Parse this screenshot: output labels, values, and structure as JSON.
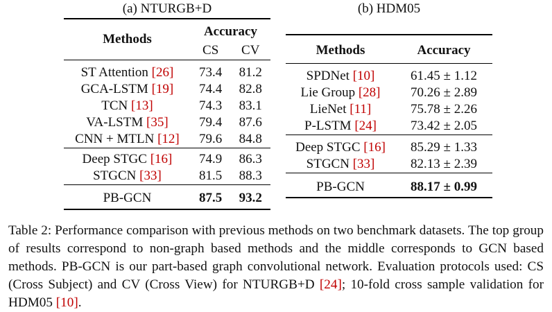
{
  "table_a": {
    "caption": "(a) NTURGB+D",
    "header": {
      "methods": "Methods",
      "accuracy": "Accuracy",
      "cs": "CS",
      "cv": "CV"
    },
    "group1": [
      {
        "method": "ST Attention ",
        "ref": "[26]",
        "cs": "73.4",
        "cv": "81.2"
      },
      {
        "method": "GCA-LSTM ",
        "ref": "[19]",
        "cs": "74.4",
        "cv": "82.8"
      },
      {
        "method": "TCN ",
        "ref": "[13]",
        "cs": "74.3",
        "cv": "83.1"
      },
      {
        "method": "VA-LSTM ",
        "ref": "[35]",
        "cs": "79.4",
        "cv": "87.6"
      },
      {
        "method": "CNN + MTLN ",
        "ref": "[12]",
        "cs": "79.6",
        "cv": "84.8"
      }
    ],
    "group2": [
      {
        "method": "Deep STGC ",
        "ref": "[16]",
        "cs": "74.9",
        "cv": "86.3"
      },
      {
        "method": "STGCN ",
        "ref": "[33]",
        "cs": "81.5",
        "cv": "88.3"
      }
    ],
    "ours": {
      "method": "PB-GCN",
      "cs": "87.5",
      "cv": "93.2"
    }
  },
  "table_b": {
    "caption": "(b) HDM05",
    "header": {
      "methods": "Methods",
      "accuracy": "Accuracy"
    },
    "group1": [
      {
        "method": "SPDNet ",
        "ref": "[10]",
        "acc": "61.45 ± 1.12"
      },
      {
        "method": "Lie Group ",
        "ref": "[28]",
        "acc": "70.26 ± 2.89"
      },
      {
        "method": "LieNet ",
        "ref": "[11]",
        "acc": "75.78 ± 2.26"
      },
      {
        "method": "P-LSTM ",
        "ref": "[24]",
        "acc": "73.42 ± 2.05"
      }
    ],
    "group2": [
      {
        "method": "Deep STGC ",
        "ref": "[16]",
        "acc": "85.29 ± 1.33"
      },
      {
        "method": "STGCN ",
        "ref": "[33]",
        "acc": "82.13 ± 2.39"
      }
    ],
    "ours": {
      "method": "PB-GCN",
      "acc": "88.17 ± 0.99"
    }
  },
  "caption": {
    "part1": "Table 2: Performance comparison with previous methods on two benchmark datasets. The top group of results correspond to non-graph based methods and the middle corresponds to GCN based methods. PB-GCN is our part-based graph convolutional network. Evaluation protocols used: CS (Cross Subject) and CV (Cross View) for NTURGB+D ",
    "ref1": "[24]",
    "part2": "; 10-fold cross sample validation for HDM05 ",
    "ref2": "[10]",
    "part3": "."
  }
}
